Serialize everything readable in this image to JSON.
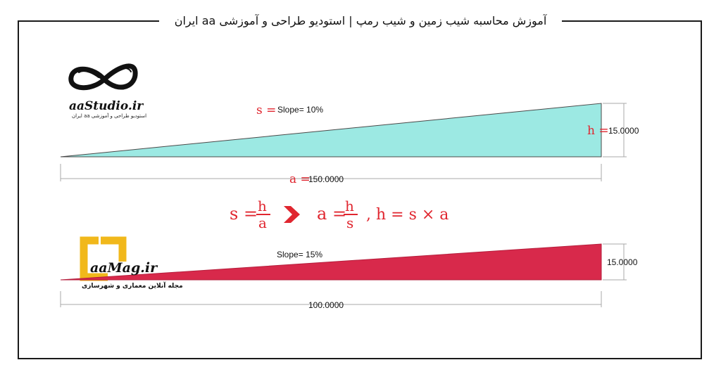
{
  "header": {
    "title": "آموزش محاسبه شیب زمین و شیب رمپ | استودیو طراحی و آموزشی aa ایران"
  },
  "logo1": {
    "name": "aaStudio.ir",
    "subtitle": "استودیو طراحی و آموزشی aa ایران"
  },
  "logo2": {
    "name": "aaMag.ir",
    "subtitle": "مجله آنلاین معماری و شهرسازی"
  },
  "diagram1": {
    "slope_symbol": "s =",
    "slope_label": "Slope= 10%",
    "height_symbol": "h =",
    "height_value": "15.0000",
    "length_symbol": "a =",
    "length_value": "150.0000",
    "fill_color": "#9ce9e3"
  },
  "formulas": {
    "f1_left": "s =",
    "f1_num": "h",
    "f1_den": "a",
    "arrow": "❯",
    "f2_left": "a =",
    "f2_num": "h",
    "f2_den": "s",
    "f3": ", h = s × a",
    "color": "#e0262f"
  },
  "diagram2": {
    "slope_label": "Slope= 15%",
    "height_value": "15.0000",
    "length_value": "100.0000",
    "fill_color": "#d8294b"
  }
}
